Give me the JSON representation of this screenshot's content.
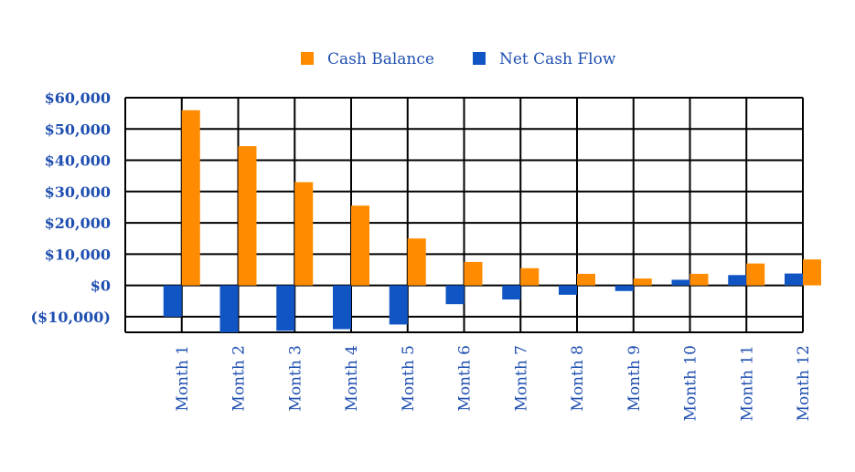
{
  "chart_data": {
    "type": "bar",
    "categories": [
      "Month 1",
      "Month 2",
      "Month 3",
      "Month 4",
      "Month 5",
      "Month 6",
      "Month 7",
      "Month 8",
      "Month 9",
      "Month 10",
      "Month 11",
      "Month 12"
    ],
    "series": [
      {
        "name": "Net Cash Flow",
        "color": "#1155c4",
        "values": [
          -10000,
          -16000,
          -14500,
          -14000,
          -12500,
          -6000,
          -4500,
          -3000,
          -1800,
          1800,
          3300,
          3800
        ]
      },
      {
        "name": "Cash Balance",
        "color": "#ff8c00",
        "values": [
          56000,
          44500,
          33000,
          25500,
          15000,
          7500,
          5500,
          3700,
          2200,
          3700,
          7000,
          8300
        ]
      }
    ],
    "legend_order": [
      "Cash Balance",
      "Net Cash Flow"
    ],
    "ylim": [
      -15000,
      60000
    ],
    "yticks": [
      60000,
      50000,
      40000,
      30000,
      20000,
      10000,
      0,
      -10000
    ],
    "ytick_labels": [
      "$60,000",
      "$50,000",
      "$40,000",
      "$30,000",
      "$20,000",
      "$10,000",
      "$0",
      "($10,000)"
    ],
    "grid": true,
    "legend_position": "top"
  }
}
